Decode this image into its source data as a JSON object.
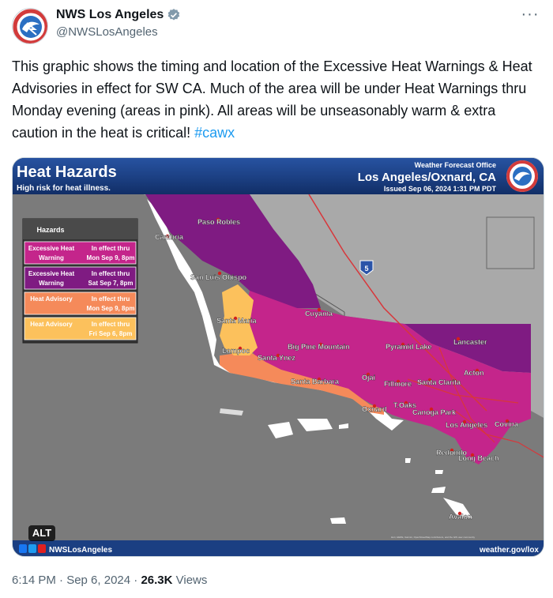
{
  "author": {
    "display_name": "NWS Los Angeles",
    "handle": "@NWSLosAngeles",
    "avatar_icon": "nws-logo-icon",
    "verified_icon": "verified-badge-icon"
  },
  "more_icon": "more-options-icon",
  "tweet": {
    "text": "This graphic shows the timing and location of the Excessive Heat Warnings & Heat Advisories in effect for SW CA. Much of the area will be under Heat Warnings thru Monday evening (areas in pink). All areas will be unseasonably warm  & extra caution in the heat is critical! ",
    "hashtag": "#cawx"
  },
  "graphic": {
    "title": "Heat Hazards",
    "subtitle": "High risk for heat illness.",
    "office_label": "Weather Forecast Office",
    "office_name": "Los Angeles/Oxnard, CA",
    "issued": "Issued Sep 06, 2024 1:31 PM PDT",
    "legend_title": "Hazards",
    "legend": [
      {
        "hazard": "Excessive Heat Warning",
        "line1": "Excessive Heat",
        "line2": "Warning",
        "eff1": "In effect thru",
        "eff2": "Mon Sep 9, 8pm",
        "color": "#c4258b"
      },
      {
        "hazard": "Excessive Heat Warning",
        "line1": "Excessive Heat",
        "line2": "Warning",
        "eff1": "In effect thru",
        "eff2": "Sat Sep 7, 8pm",
        "color": "#7f1b82"
      },
      {
        "hazard": "Heat Advisory",
        "line1": "Heat Advisory",
        "line2": "",
        "eff1": "In effect thru",
        "eff2": "Mon Sep 9, 8pm",
        "color": "#f58a5a"
      },
      {
        "hazard": "Heat Advisory",
        "line1": "Heat Advisory",
        "line2": "",
        "eff1": "In effect thru",
        "eff2": "Fri Sep 6, 8pm",
        "color": "#fcc15c"
      }
    ],
    "highway_label": "5",
    "cities": [
      "Paso Robles",
      "Cambria",
      "San Luis Obispo",
      "Santa Maria",
      "Cuyama",
      "Lompoc",
      "Big Pine Mountain",
      "Santa Ynez",
      "Pyramid Lake",
      "Lancaster",
      "Santa Barbara",
      "Ojai",
      "Fillmore",
      "Santa Clarita",
      "Acton",
      "Oxnard",
      "T.Oaks",
      "Canoga Park",
      "Los Angeles",
      "Covina",
      "Redondo",
      "Long Beach",
      "Avalon"
    ],
    "footer_handle": "NWSLosAngeles",
    "footer_url": "weather.gov/lox",
    "credits": "Esri, HERE, Garmin, OpenStreetMap contributors, and the GIS user community"
  },
  "alt_label": "ALT",
  "footer": {
    "time": "6:14 PM · Sep 6, 2024 · ",
    "views_count": "26.3K",
    "views_label": " Views"
  }
}
